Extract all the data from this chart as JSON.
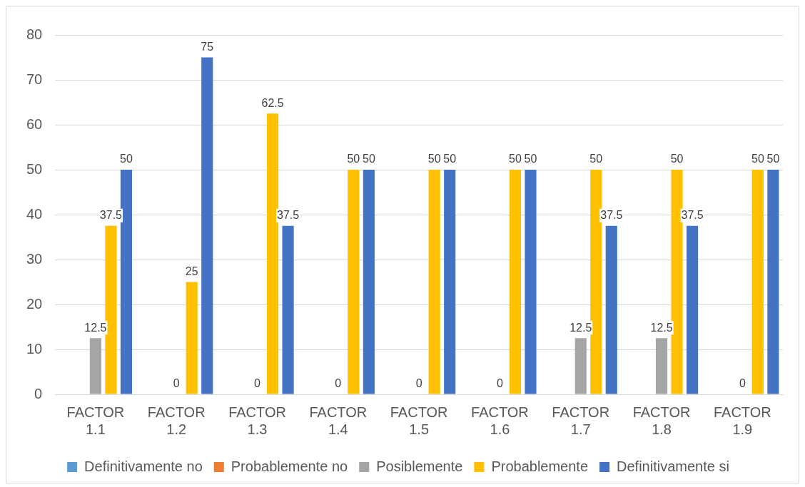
{
  "chart_data": {
    "type": "bar",
    "categories": [
      "FACTOR 1.1",
      "FACTOR 1.2",
      "FACTOR 1.3",
      "FACTOR 1.4",
      "FACTOR 1.5",
      "FACTOR 1.6",
      "FACTOR 1.7",
      "FACTOR 1.8",
      "FACTOR 1.9"
    ],
    "series": [
      {
        "name": "Definitivamente no",
        "color": "#5b9bd5",
        "values": [
          0,
          0,
          0,
          0,
          0,
          0,
          0,
          0,
          0
        ]
      },
      {
        "name": "Probablemente no",
        "color": "#ed7d31",
        "values": [
          0,
          0,
          0,
          0,
          0,
          0,
          0,
          0,
          0
        ]
      },
      {
        "name": "Posiblemente",
        "color": "#a5a5a5",
        "values": [
          12.5,
          0,
          0,
          0,
          0,
          0,
          12.5,
          12.5,
          0
        ],
        "value_labels": [
          "12.5",
          "0",
          "0",
          "0",
          "0",
          "0",
          "12.5",
          "12.5",
          "0"
        ]
      },
      {
        "name": "Probablemente",
        "color": "#ffc000",
        "values": [
          37.5,
          25,
          62.5,
          50,
          50,
          50,
          50,
          50,
          50
        ],
        "value_labels": [
          "37.5",
          "25",
          "62.5",
          "50",
          "50",
          "50",
          "50",
          "50",
          "50"
        ]
      },
      {
        "name": "Definitivamente si",
        "color": "#4472c4",
        "values": [
          50,
          75,
          37.5,
          50,
          50,
          50,
          37.5,
          37.5,
          50
        ],
        "value_labels": [
          "50",
          "75",
          "37.5",
          "50",
          "50",
          "50",
          "37.5",
          "37.5",
          "50"
        ]
      }
    ],
    "ylim": [
      0,
      80
    ],
    "yticks": [
      0,
      10,
      20,
      30,
      40,
      50,
      60,
      70,
      80
    ],
    "grid": "y",
    "legend": "bottom"
  }
}
